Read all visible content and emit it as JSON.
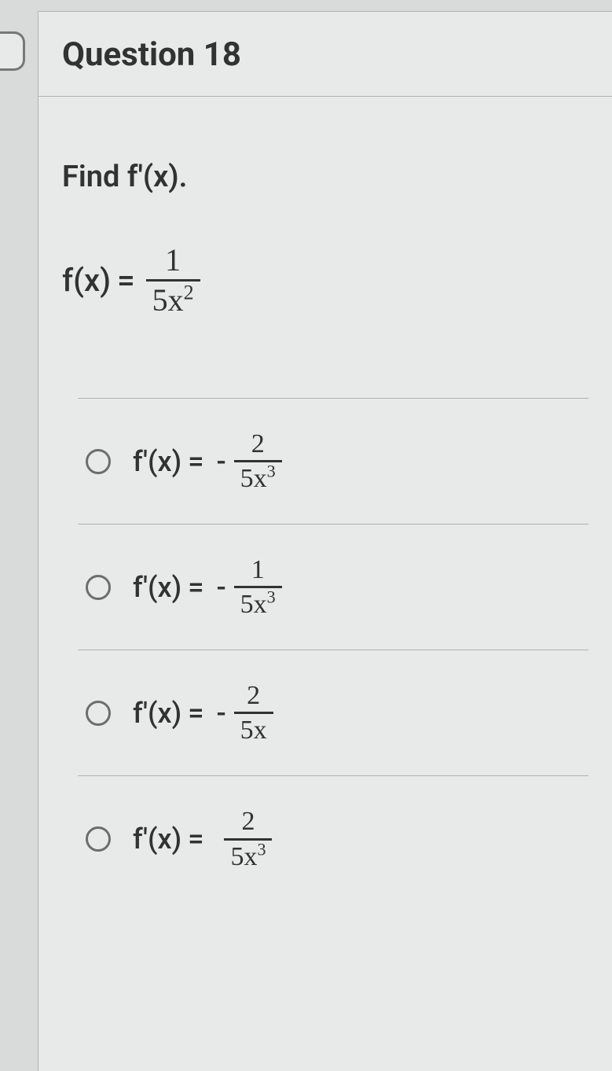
{
  "header": {
    "title": "Question 18"
  },
  "question": {
    "prompt": "Find f'(x).",
    "function_lhs": "f(x)",
    "function_eq": "=",
    "function_frac_num": "1",
    "function_frac_den_coeff": "5x",
    "function_frac_den_exp": "2"
  },
  "options": [
    {
      "lhs": "f'(x)",
      "eq": "=",
      "neg": "-",
      "num": "2",
      "den_coeff": "5x",
      "den_exp": "3"
    },
    {
      "lhs": "f'(x)",
      "eq": "=",
      "neg": "-",
      "num": "1",
      "den_coeff": "5x",
      "den_exp": "3"
    },
    {
      "lhs": "f'(x)",
      "eq": "=",
      "neg": "-",
      "num": "2",
      "den_coeff": "5x",
      "den_exp": ""
    },
    {
      "lhs": "f'(x)",
      "eq": "=",
      "neg": "",
      "num": "2",
      "den_coeff": "5x",
      "den_exp": "3"
    }
  ],
  "styling": {
    "background_color": "#d8dbda",
    "panel_color": "#e8eae9",
    "border_color": "#b0b3b2",
    "text_color": "#2f3332",
    "radio_border": "#6a6e6d",
    "title_fontsize": 42,
    "prompt_fontsize": 38,
    "math_fontsize": 40,
    "option_math_fontsize": 36
  }
}
